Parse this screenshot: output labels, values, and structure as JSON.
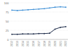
{
  "chart_data": {
    "type": "line",
    "categories": [
      "2012",
      "2013",
      "2014",
      "2015",
      "2016",
      "2017",
      "2018",
      "2019",
      "2020",
      "2021",
      "2022"
    ],
    "series": [
      {
        "color": "#3d8fd6",
        "marker": "circle",
        "values": [
          80,
          79,
          80,
          81,
          82,
          83,
          84,
          86,
          88,
          89,
          88
        ]
      },
      {
        "color": "#1f2d4a",
        "marker": "circle",
        "values": [
          14,
          14,
          15,
          15,
          15,
          16,
          16,
          17,
          28,
          33,
          35
        ]
      }
    ],
    "ylim": [
      0,
      100
    ],
    "yticks": [
      0,
      25,
      50,
      75,
      100
    ],
    "grid": true
  }
}
